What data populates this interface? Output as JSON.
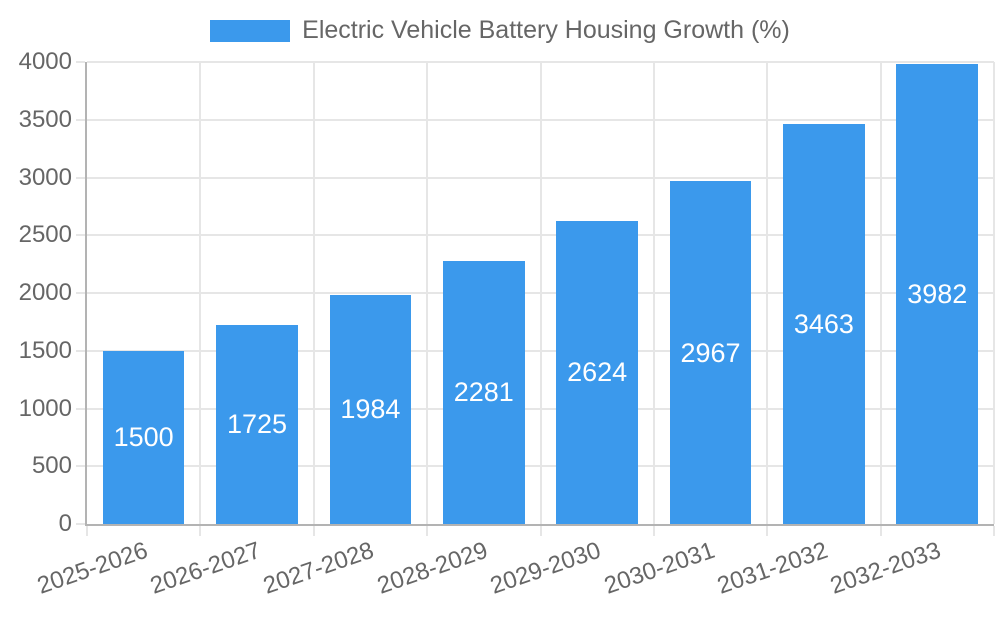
{
  "chart_data": {
    "type": "bar",
    "title": "Electric Vehicle Battery Housing Growth (%)",
    "categories": [
      "2025-2026",
      "2026-2027",
      "2027-2028",
      "2028-2029",
      "2029-2030",
      "2030-2031",
      "2031-2032",
      "2032-2033"
    ],
    "series": [
      {
        "name": "Electric Vehicle Battery Housing Growth (%)",
        "values": [
          1500,
          1725,
          1984,
          2281,
          2624,
          2967,
          3463,
          3982
        ]
      }
    ],
    "yticks": [
      0,
      500,
      1000,
      1500,
      2000,
      2500,
      3000,
      3500,
      4000
    ],
    "ylim": [
      0,
      4000
    ],
    "xlabel": "",
    "ylabel": "",
    "grid": true,
    "legend_position": "top",
    "bar_labels_visible": true,
    "colors": {
      "bar": "#3b99ec",
      "bar_value_text": "#ffffff",
      "axis_text": "#666666",
      "gridline": "#e6e6e6",
      "axis_line": "#b3b3b3",
      "background": "#ffffff"
    }
  }
}
